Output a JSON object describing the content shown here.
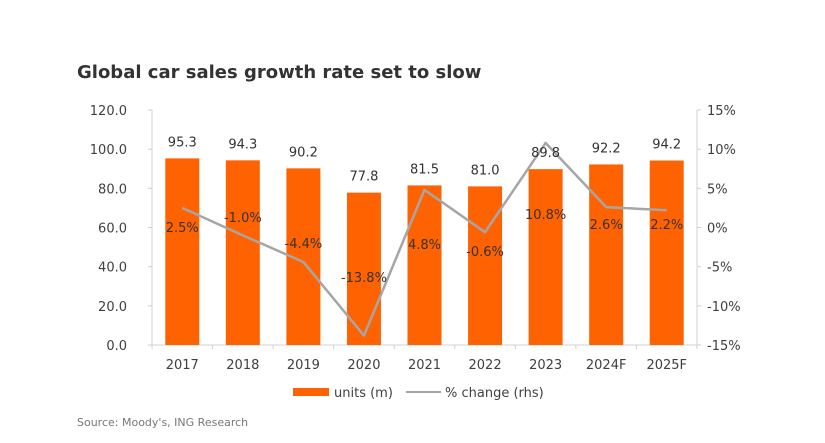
{
  "chart_data": {
    "type": "bar",
    "title": "Global car sales growth rate set to slow",
    "categories": [
      "2017",
      "2018",
      "2019",
      "2020",
      "2021",
      "2022",
      "2023",
      "2024F",
      "2025F"
    ],
    "series": [
      {
        "name": "units (m)",
        "type": "bar",
        "axis": "left",
        "color": "#FF6200",
        "values": [
          95.3,
          94.3,
          90.2,
          77.8,
          81.5,
          81.0,
          89.8,
          92.2,
          94.2
        ],
        "labels": [
          "95.3",
          "94.3",
          "90.2",
          "77.8",
          "81.5",
          "81.0",
          "89.8",
          "92.2",
          "94.2"
        ]
      },
      {
        "name": "% change (rhs)",
        "type": "line",
        "axis": "right",
        "color": "#A6A6A6",
        "values": [
          2.5,
          -1.0,
          -4.4,
          -13.8,
          4.8,
          -0.6,
          10.8,
          2.6,
          2.2
        ],
        "labels": [
          "2.5%",
          "-1.0%",
          "-4.4%",
          "-13.8%",
          "4.8%",
          "-0.6%",
          "10.8%",
          "2.6%",
          "2.2%"
        ]
      }
    ],
    "y_left": {
      "ylim": [
        0,
        120
      ],
      "ticks": [
        "0.0",
        "20.0",
        "40.0",
        "60.0",
        "80.0",
        "100.0",
        "120.0"
      ]
    },
    "y_right": {
      "ylim": [
        -15,
        15
      ],
      "ticks": [
        "-15%",
        "-10%",
        "-5%",
        "0%",
        "5%",
        "10%",
        "15%"
      ]
    },
    "xlabel": "",
    "ylabel": "",
    "grid": false,
    "legend": {
      "position": "bottom-right",
      "entries": [
        "units (m)",
        "% change (rhs)"
      ]
    },
    "source": "Source: Moody's, ING Research"
  }
}
